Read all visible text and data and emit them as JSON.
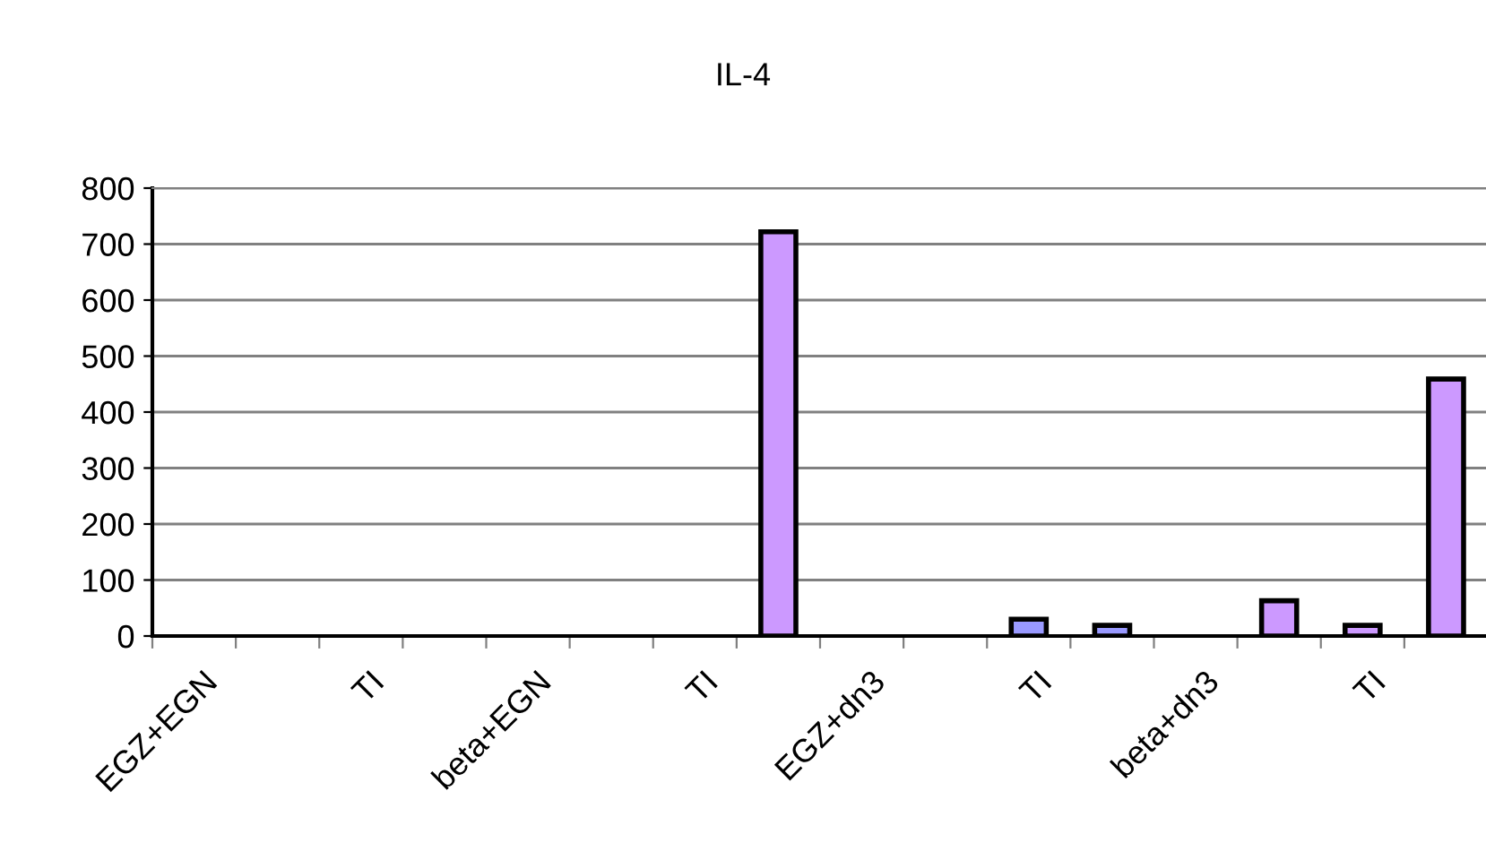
{
  "chart_data": {
    "type": "bar",
    "title": "IL-4",
    "categories": [
      "EGZ+EGN",
      null,
      "TI",
      null,
      "beta+EGN",
      null,
      "TI",
      null,
      "EGZ+dn3",
      null,
      "TI",
      null,
      "beta+dn3",
      null,
      "TI",
      null
    ],
    "values": [
      null,
      null,
      null,
      null,
      null,
      null,
      null,
      722,
      null,
      null,
      30,
      19,
      null,
      63,
      19,
      459
    ],
    "colors": [
      "#cc99ff",
      "#cc99ff",
      "#cc99ff",
      "#cc99ff",
      "#cc99ff",
      "#cc99ff",
      "#cc99ff",
      "#cc99ff",
      "#cc99ff",
      "#cc99ff",
      "#9999ff",
      "#9999ff",
      "#cc99ff",
      "#cc99ff",
      "#cc99ff",
      "#cc99ff"
    ],
    "ylim": [
      0,
      800
    ],
    "yticks": [
      0,
      100,
      200,
      300,
      400,
      500,
      600,
      700,
      800
    ],
    "grid": "y"
  }
}
